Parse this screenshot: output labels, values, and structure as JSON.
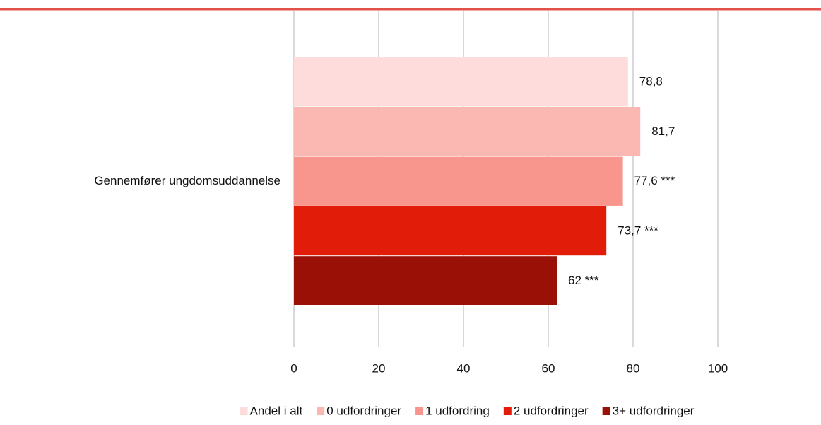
{
  "chart_data": {
    "type": "hbar",
    "categories": [
      "Gennemfører ungdomsuddannelse"
    ],
    "series": [
      {
        "name": "Andel i alt",
        "color": "#fddcdb",
        "values": [
          78.8
        ],
        "value_labels": [
          "78,8"
        ]
      },
      {
        "name": "0 udfordringer",
        "color": "#fbb8b3",
        "values": [
          81.7
        ],
        "value_labels": [
          "81,7"
        ]
      },
      {
        "name": "1 udfordring",
        "color": "#f8968d",
        "values": [
          77.6
        ],
        "value_labels": [
          "77,6 ***"
        ]
      },
      {
        "name": "2 udfordringer",
        "color": "#e11d0a",
        "values": [
          73.7
        ],
        "value_labels": [
          "73,7 ***"
        ]
      },
      {
        "name": "3+ udfordringer",
        "color": "#9a1006",
        "values": [
          62
        ],
        "value_labels": [
          "62 ***"
        ]
      }
    ],
    "xlim": [
      0,
      100
    ],
    "xticks": [
      0,
      20,
      40,
      60,
      80,
      100
    ],
    "grid": true,
    "legend": "bottom"
  }
}
